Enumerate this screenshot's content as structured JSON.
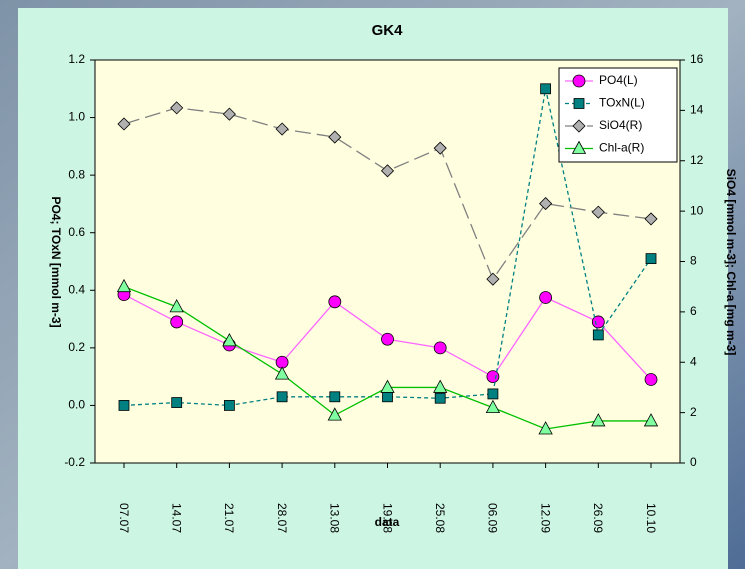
{
  "chart_data": {
    "type": "line",
    "title": "GK4",
    "x_label": "data",
    "y_label": "PO4; TOxN [mmol m-3]",
    "y2_label": "SiO4 [mmol m-3]; Chl-a [mg m-3]",
    "categories": [
      "07.07",
      "14.07",
      "21.07",
      "28.07",
      "13.08",
      "19.08",
      "25.08",
      "06.09",
      "12.09",
      "26.09",
      "10.10"
    ],
    "ylim": [
      -0.2,
      1.2
    ],
    "yticks": [
      -0.2,
      {
        "value": 0,
        "label": "0.0"
      },
      0.2,
      0.4,
      0.6,
      0.8,
      {
        "value": 1,
        "label": "1.0"
      },
      1.2
    ],
    "y2lim": [
      0,
      16
    ],
    "y2ticks": [
      0,
      2,
      4,
      6,
      8,
      10,
      12,
      14,
      16
    ],
    "legend": "upper right",
    "series": [
      {
        "name": "PO4(L)",
        "color": "#ff00ff",
        "line": "#ff66ff",
        "dash": "solid",
        "marker": "circle",
        "axis": "y",
        "values": [
          0.385,
          0.29,
          0.21,
          0.15,
          0.36,
          0.23,
          0.2,
          0.1,
          0.375,
          0.29,
          0.09
        ]
      },
      {
        "name": "TOxN(L)",
        "color": "#008080",
        "line": "#008080",
        "dash": "dashed",
        "marker": "square",
        "axis": "y",
        "values": [
          0.0,
          0.01,
          0.0,
          0.03,
          0.03,
          0.03,
          0.025,
          0.04,
          1.1,
          0.245,
          0.51
        ]
      },
      {
        "name": "SiO4(R)",
        "color": "#b0b0b0",
        "line": "#808080",
        "dash": "longdash",
        "marker": "diamond",
        "axis": "y2",
        "values": [
          13.46,
          14.1,
          13.85,
          13.26,
          12.94,
          11.6,
          12.5,
          7.3,
          10.3,
          9.96,
          9.69
        ]
      },
      {
        "name": "Chl-a(R)",
        "color": "#80ffa0",
        "line": "#00c000",
        "dash": "solid",
        "marker": "triangle",
        "axis": "y2",
        "values": [
          7.0,
          6.2,
          4.85,
          3.53,
          1.9,
          3.0,
          3.0,
          2.2,
          1.35,
          1.67,
          1.67
        ]
      }
    ]
  }
}
